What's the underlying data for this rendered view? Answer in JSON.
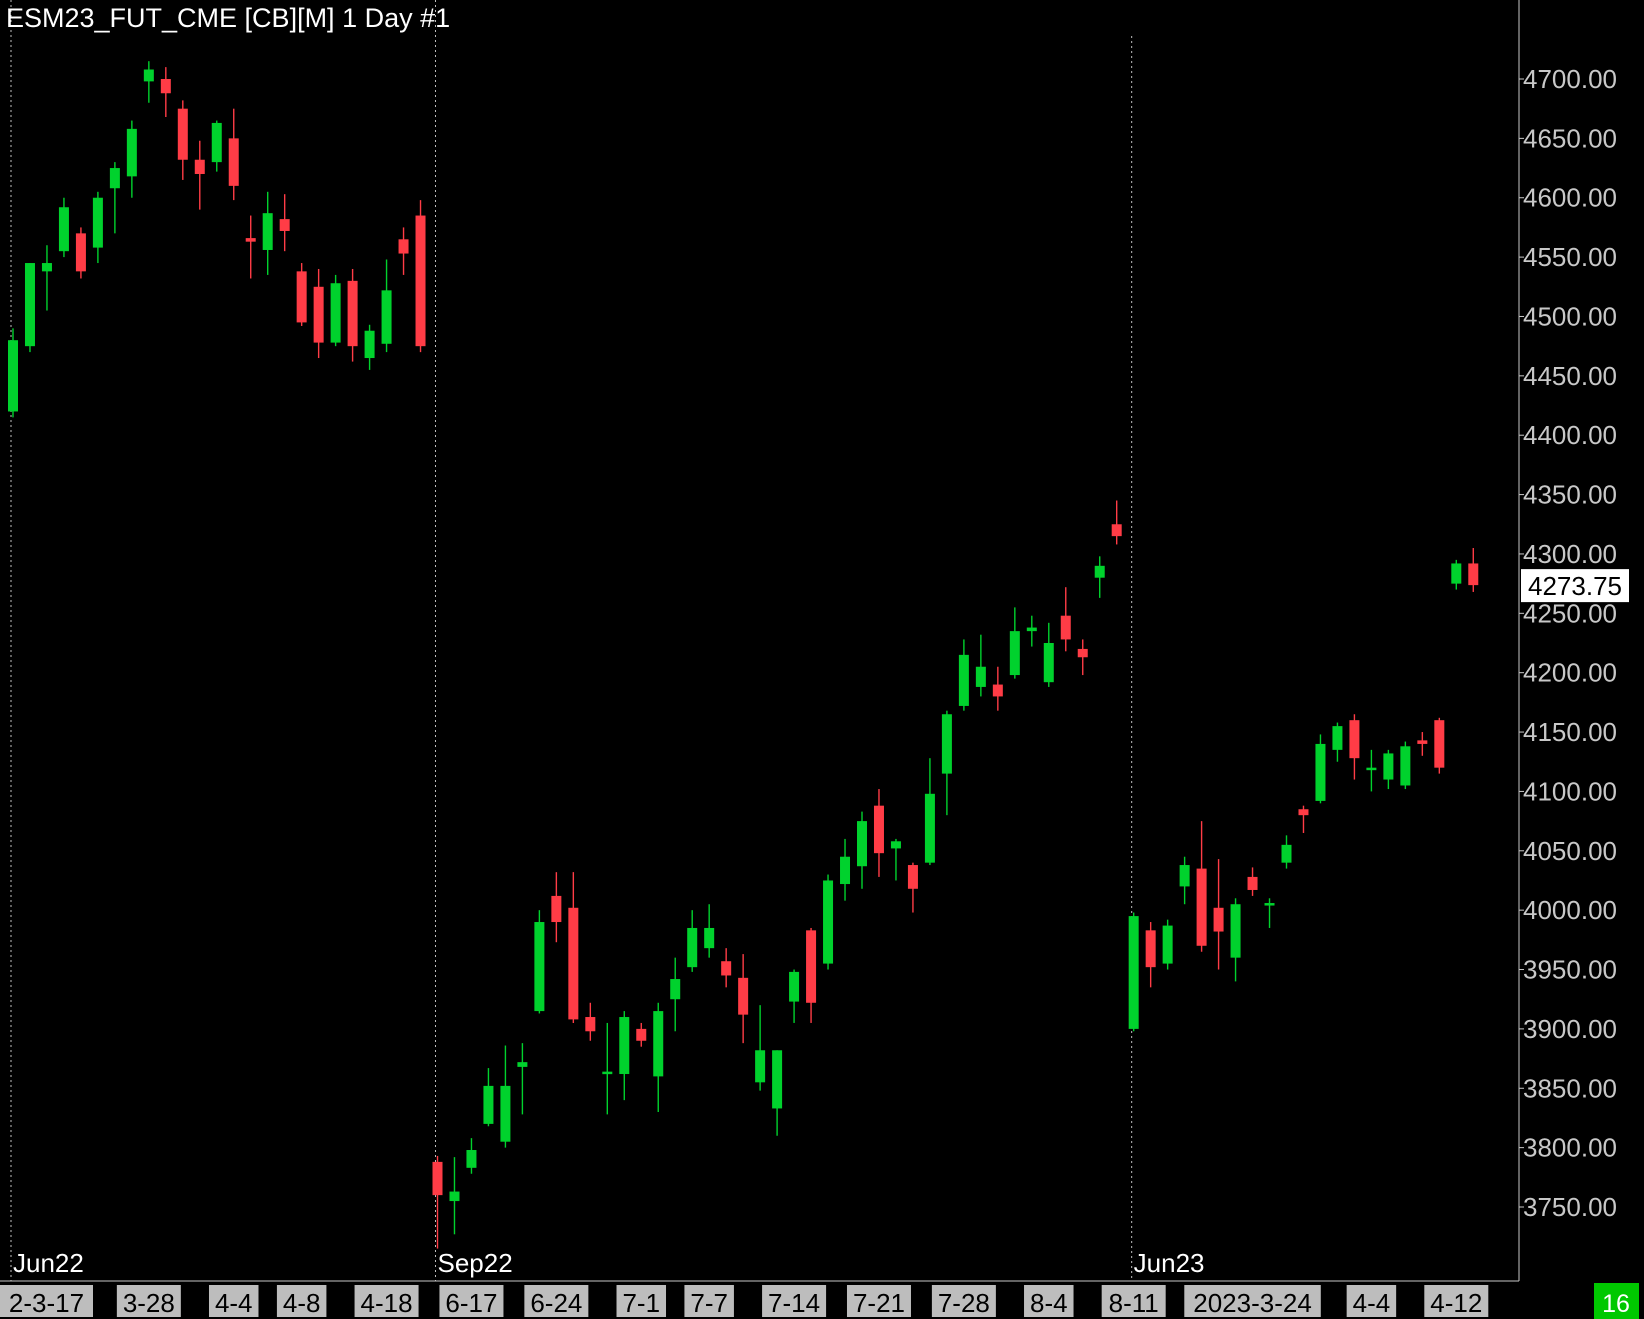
{
  "header": {
    "title": "ESM23_FUT_CME [CB][M]  1 Day   #1"
  },
  "status": {
    "bar_count": "16",
    "bar_count_color": "#00c800"
  },
  "colors": {
    "up": "#00d22d",
    "down": "#ff3c46",
    "background": "#000000",
    "axis_text": "#c8c8c8"
  },
  "chart_data": {
    "type": "candlestick",
    "symbol": "ESM23_FUT_CME",
    "interval": "1 Day",
    "last_price": "4273.75",
    "ylim": [
      3720,
      4735
    ],
    "y_ticks": [
      "3750.00",
      "3800.00",
      "3850.00",
      "3900.00",
      "3950.00",
      "4000.00",
      "4050.00",
      "4100.00",
      "4150.00",
      "4200.00",
      "4250.00",
      "4300.00",
      "4350.00",
      "4400.00",
      "4450.00",
      "4500.00",
      "4550.00",
      "4600.00",
      "4650.00",
      "4700.00"
    ],
    "x_labels": [
      {
        "label": "2-3-17",
        "index": 1
      },
      {
        "label": "3-28",
        "index": 8
      },
      {
        "label": "4-4",
        "index": 13
      },
      {
        "label": "4-8",
        "index": 17
      },
      {
        "label": "4-18",
        "index": 22
      },
      {
        "label": "6-17",
        "index": 27
      },
      {
        "label": "6-24",
        "index": 32
      },
      {
        "label": "7-1",
        "index": 37
      },
      {
        "label": "7-7",
        "index": 41
      },
      {
        "label": "7-14",
        "index": 46
      },
      {
        "label": "7-21",
        "index": 51
      },
      {
        "label": "7-28",
        "index": 56
      },
      {
        "label": "8-4",
        "index": 61
      },
      {
        "label": "8-11",
        "index": 66
      },
      {
        "label": "2023-3-24",
        "index": 73
      },
      {
        "label": "4-4",
        "index": 80
      },
      {
        "label": "4-12",
        "index": 85
      }
    ],
    "contract_markers": [
      {
        "label": "Jun22",
        "index": 0
      },
      {
        "label": "Sep22",
        "index": 25
      },
      {
        "label": "Jun23",
        "index": 66
      }
    ],
    "candles": [
      {
        "o": 4420,
        "h": 4490,
        "l": 4415,
        "c": 4480
      },
      {
        "o": 4475,
        "h": 4545,
        "l": 4470,
        "c": 4545
      },
      {
        "o": 4538,
        "h": 4560,
        "l": 4505,
        "c": 4545
      },
      {
        "o": 4555,
        "h": 4600,
        "l": 4550,
        "c": 4592
      },
      {
        "o": 4570,
        "h": 4575,
        "l": 4532,
        "c": 4538
      },
      {
        "o": 4558,
        "h": 4605,
        "l": 4545,
        "c": 4600
      },
      {
        "o": 4608,
        "h": 4630,
        "l": 4570,
        "c": 4625
      },
      {
        "o": 4618,
        "h": 4665,
        "l": 4600,
        "c": 4658
      },
      {
        "o": 4698,
        "h": 4715,
        "l": 4680,
        "c": 4708
      },
      {
        "o": 4700,
        "h": 4710,
        "l": 4668,
        "c": 4688
      },
      {
        "o": 4675,
        "h": 4682,
        "l": 4615,
        "c": 4632
      },
      {
        "o": 4632,
        "h": 4648,
        "l": 4590,
        "c": 4620
      },
      {
        "o": 4630,
        "h": 4665,
        "l": 4622,
        "c": 4663
      },
      {
        "o": 4650,
        "h": 4675,
        "l": 4598,
        "c": 4610
      },
      {
        "o": 4566,
        "h": 4585,
        "l": 4532,
        "c": 4563
      },
      {
        "o": 4556,
        "h": 4605,
        "l": 4535,
        "c": 4587
      },
      {
        "o": 4582,
        "h": 4603,
        "l": 4555,
        "c": 4572
      },
      {
        "o": 4538,
        "h": 4545,
        "l": 4492,
        "c": 4495
      },
      {
        "o": 4525,
        "h": 4540,
        "l": 4465,
        "c": 4478
      },
      {
        "o": 4478,
        "h": 4535,
        "l": 4475,
        "c": 4528
      },
      {
        "o": 4530,
        "h": 4540,
        "l": 4462,
        "c": 4475
      },
      {
        "o": 4465,
        "h": 4493,
        "l": 4455,
        "c": 4488
      },
      {
        "o": 4477,
        "h": 4548,
        "l": 4470,
        "c": 4522
      },
      {
        "o": 4565,
        "h": 4575,
        "l": 4535,
        "c": 4553
      },
      {
        "o": 4585,
        "h": 4598,
        "l": 4470,
        "c": 4475
      },
      {
        "o": 3788,
        "h": 3793,
        "l": 3715,
        "c": 3760
      },
      {
        "o": 3755,
        "h": 3792,
        "l": 3727,
        "c": 3763
      },
      {
        "o": 3783,
        "h": 3808,
        "l": 3778,
        "c": 3798
      },
      {
        "o": 3820,
        "h": 3867,
        "l": 3818,
        "c": 3852
      },
      {
        "o": 3805,
        "h": 3886,
        "l": 3800,
        "c": 3852
      },
      {
        "o": 3868,
        "h": 3888,
        "l": 3828,
        "c": 3872
      },
      {
        "o": 3915,
        "h": 4000,
        "l": 3913,
        "c": 3990
      },
      {
        "o": 4012,
        "h": 4032,
        "l": 3973,
        "c": 3990
      },
      {
        "o": 4002,
        "h": 4032,
        "l": 3905,
        "c": 3908
      },
      {
        "o": 3910,
        "h": 3922,
        "l": 3890,
        "c": 3898
      },
      {
        "o": 3862,
        "h": 3905,
        "l": 3828,
        "c": 3864
      },
      {
        "o": 3862,
        "h": 3915,
        "l": 3840,
        "c": 3910
      },
      {
        "o": 3900,
        "h": 3905,
        "l": 3885,
        "c": 3890
      },
      {
        "o": 3860,
        "h": 3922,
        "l": 3830,
        "c": 3915
      },
      {
        "o": 3925,
        "h": 3960,
        "l": 3898,
        "c": 3942
      },
      {
        "o": 3952,
        "h": 4000,
        "l": 3948,
        "c": 3985
      },
      {
        "o": 3968,
        "h": 4005,
        "l": 3960,
        "c": 3985
      },
      {
        "o": 3957,
        "h": 3968,
        "l": 3935,
        "c": 3945
      },
      {
        "o": 3943,
        "h": 3963,
        "l": 3888,
        "c": 3912
      },
      {
        "o": 3855,
        "h": 3920,
        "l": 3848,
        "c": 3882
      },
      {
        "o": 3833,
        "h": 3882,
        "l": 3810,
        "c": 3882
      },
      {
        "o": 3923,
        "h": 3950,
        "l": 3905,
        "c": 3948
      },
      {
        "o": 3983,
        "h": 3985,
        "l": 3905,
        "c": 3922
      },
      {
        "o": 3955,
        "h": 4030,
        "l": 3950,
        "c": 4025
      },
      {
        "o": 4022,
        "h": 4060,
        "l": 4008,
        "c": 4045
      },
      {
        "o": 4037,
        "h": 4083,
        "l": 4018,
        "c": 4075
      },
      {
        "o": 4088,
        "h": 4102,
        "l": 4028,
        "c": 4048
      },
      {
        "o": 4052,
        "h": 4060,
        "l": 4025,
        "c": 4058
      },
      {
        "o": 4038,
        "h": 4040,
        "l": 3998,
        "c": 4018
      },
      {
        "o": 4040,
        "h": 4128,
        "l": 4038,
        "c": 4098
      },
      {
        "o": 4115,
        "h": 4168,
        "l": 4080,
        "c": 4165
      },
      {
        "o": 4172,
        "h": 4228,
        "l": 4168,
        "c": 4215
      },
      {
        "o": 4188,
        "h": 4232,
        "l": 4180,
        "c": 4205
      },
      {
        "o": 4190,
        "h": 4205,
        "l": 4168,
        "c": 4180
      },
      {
        "o": 4198,
        "h": 4255,
        "l": 4195,
        "c": 4235
      },
      {
        "o": 4235,
        "h": 4248,
        "l": 4222,
        "c": 4238
      },
      {
        "o": 4192,
        "h": 4242,
        "l": 4188,
        "c": 4225
      },
      {
        "o": 4248,
        "h": 4272,
        "l": 4218,
        "c": 4228
      },
      {
        "o": 4220,
        "h": 4228,
        "l": 4198,
        "c": 4213
      },
      {
        "o": 4280,
        "h": 4298,
        "l": 4263,
        "c": 4290
      },
      {
        "o": 4325,
        "h": 4345,
        "l": 4308,
        "c": 4315
      },
      {
        "o": 3900,
        "h": 3998,
        "l": 3898,
        "c": 3995
      },
      {
        "o": 3983,
        "h": 3990,
        "l": 3935,
        "c": 3952
      },
      {
        "o": 3955,
        "h": 3992,
        "l": 3950,
        "c": 3987
      },
      {
        "o": 4020,
        "h": 4045,
        "l": 4005,
        "c": 4038
      },
      {
        "o": 4035,
        "h": 4075,
        "l": 3965,
        "c": 3970
      },
      {
        "o": 4002,
        "h": 4043,
        "l": 3950,
        "c": 3982
      },
      {
        "o": 3960,
        "h": 4010,
        "l": 3940,
        "c": 4005
      },
      {
        "o": 4028,
        "h": 4036,
        "l": 4012,
        "c": 4017
      },
      {
        "o": 4005,
        "h": 4010,
        "l": 3985,
        "c": 4006
      },
      {
        "o": 4040,
        "h": 4063,
        "l": 4035,
        "c": 4055
      },
      {
        "o": 4085,
        "h": 4088,
        "l": 4065,
        "c": 4080
      },
      {
        "o": 4092,
        "h": 4148,
        "l": 4090,
        "c": 4140
      },
      {
        "o": 4135,
        "h": 4158,
        "l": 4125,
        "c": 4155
      },
      {
        "o": 4160,
        "h": 4165,
        "l": 4110,
        "c": 4128
      },
      {
        "o": 4120,
        "h": 4135,
        "l": 4100,
        "c": 4120
      },
      {
        "o": 4110,
        "h": 4135,
        "l": 4102,
        "c": 4132
      },
      {
        "o": 4105,
        "h": 4142,
        "l": 4102,
        "c": 4138
      },
      {
        "o": 4143,
        "h": 4150,
        "l": 4130,
        "c": 4140
      },
      {
        "o": 4160,
        "h": 4162,
        "l": 4115,
        "c": 4120
      },
      {
        "o": 4275,
        "h": 4295,
        "l": 4270,
        "c": 4292
      },
      {
        "o": 4292,
        "h": 4305,
        "l": 4268,
        "c": 4273.75
      }
    ]
  }
}
